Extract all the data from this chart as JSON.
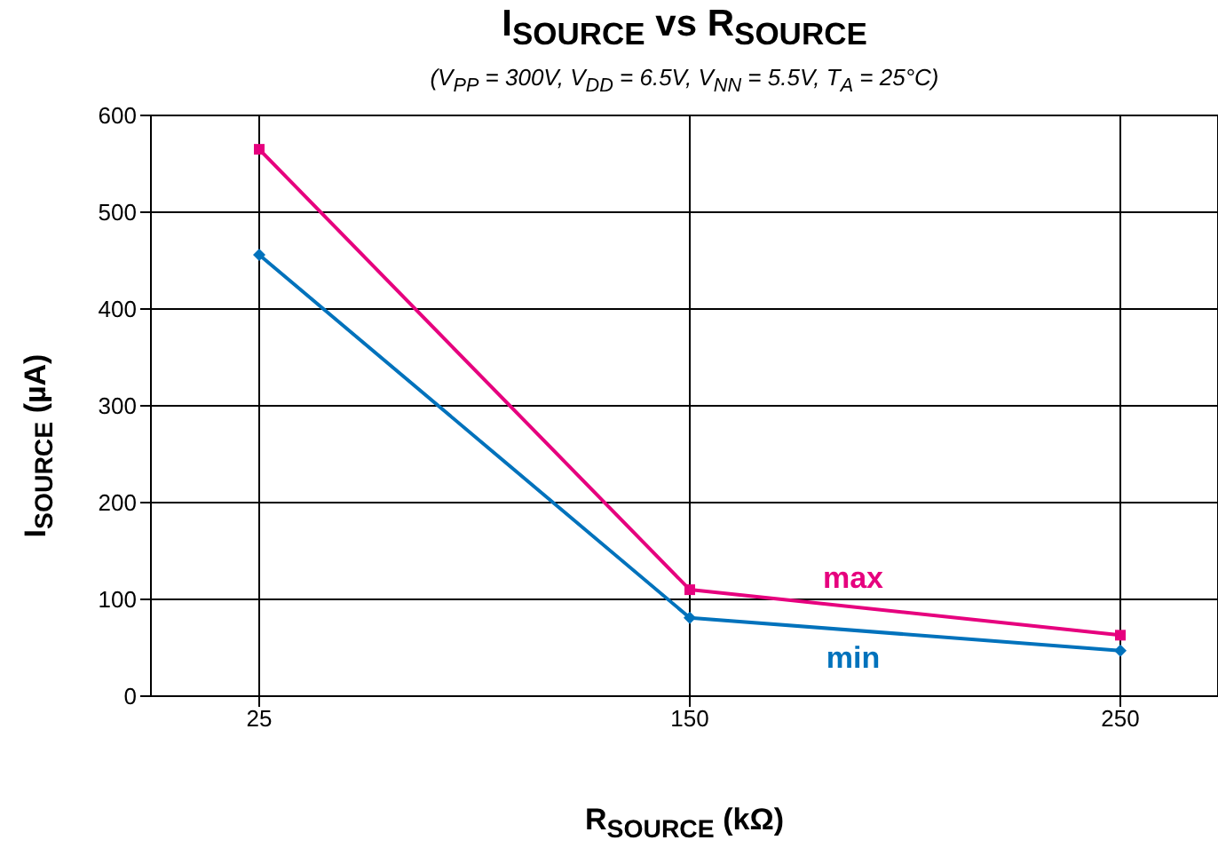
{
  "chart_data": {
    "type": "line",
    "title": "I$_{SOURCE}$ vs R$_{SOURCE}$",
    "subtitle": "(V$_{PP}$ = 300V, V$_{DD}$ = 6.5V, V$_{NN}$ = 5.5V, T$_{A}$ = 25°C)",
    "xlabel": "R$_{SOURCE}$ (kΩ)",
    "ylabel": "I$_{SOURCE}$ (µA)",
    "categories": [
      "25",
      "150",
      "250"
    ],
    "series": [
      {
        "name": "max",
        "color": "#e6007e",
        "marker": "square",
        "values": [
          565,
          110,
          63
        ]
      },
      {
        "name": "min",
        "color": "#0072bc",
        "marker": "diamond",
        "values": [
          456,
          81,
          47
        ]
      }
    ],
    "ylim": [
      0,
      600
    ],
    "yticks": [
      0,
      100,
      200,
      300,
      400,
      500,
      600
    ],
    "grid": true
  }
}
